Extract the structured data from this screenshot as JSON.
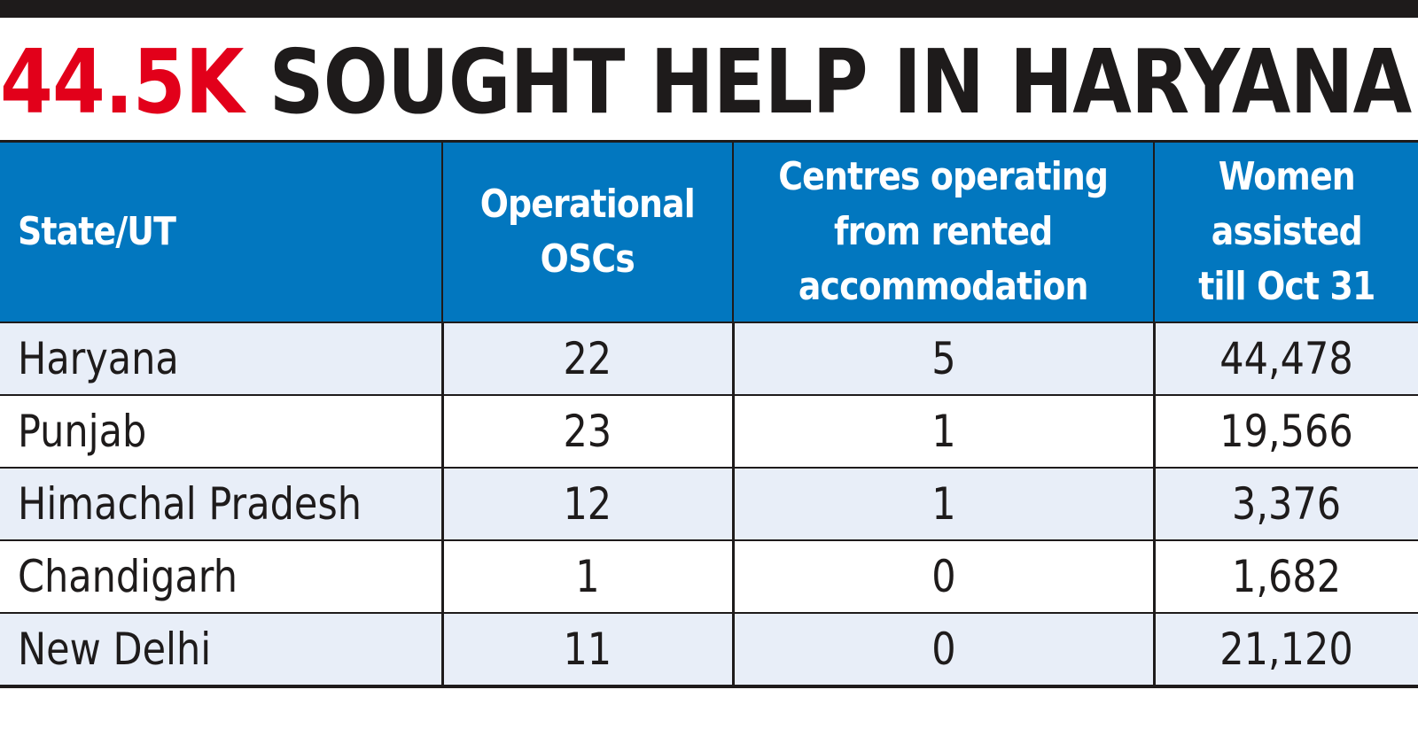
{
  "headline": {
    "accent": "44.5K",
    "rest": "SOUGHT HELP IN HARYANA"
  },
  "colors": {
    "accent_red": "#e2001a",
    "header_blue": "#0277bf",
    "row_tint": "#e8eef8",
    "ink": "#1e1b1b"
  },
  "chart_data": {
    "type": "table",
    "title": "44.5K SOUGHT HELP IN HARYANA",
    "columns": [
      "State/UT",
      "Operational OSCs",
      "Centres operating from rented accommodation",
      "Women assisted till Oct 31"
    ],
    "rows": [
      [
        "Haryana",
        "22",
        "5",
        "44,478"
      ],
      [
        "Punjab",
        "23",
        "1",
        "19,566"
      ],
      [
        "Himachal Pradesh",
        "12",
        "1",
        "3,376"
      ],
      [
        "Chandigarh",
        "1",
        "0",
        "1,682"
      ],
      [
        "New Delhi",
        "11",
        "0",
        "21,120"
      ]
    ]
  }
}
